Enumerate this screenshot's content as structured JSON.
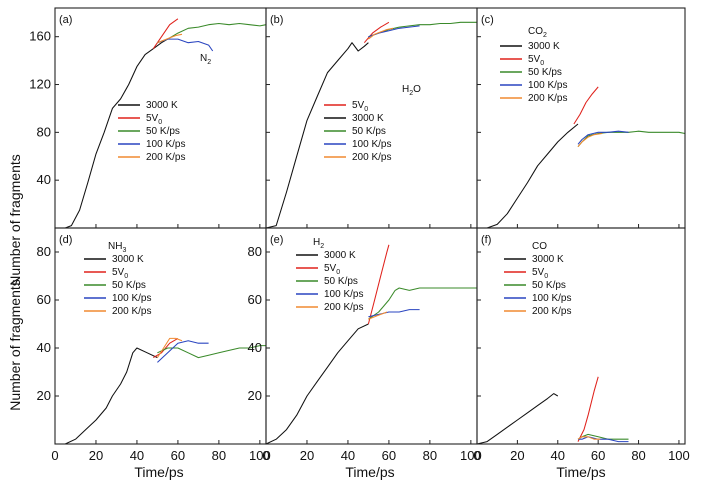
{
  "figure": {
    "ylabel": "Number of fragments",
    "xlabel": "Time/ps"
  },
  "colors": {
    "3000 K": "#111111",
    "5V0": "#e0221c",
    "50 K/ps": "#3a8a2a",
    "100 K/ps": "#2a45c0",
    "200 K/ps": "#f08a30"
  },
  "legend_entries": [
    {
      "key": "3000 K",
      "base": "3000 K",
      "sub": ""
    },
    {
      "key": "5V0",
      "base": "5V",
      "sub": "0"
    },
    {
      "key": "50 K/ps",
      "base": "50 K/ps",
      "sub": ""
    },
    {
      "key": "100 K/ps",
      "base": "100 K/ps",
      "sub": ""
    },
    {
      "key": "200 K/ps",
      "base": "200 K/ps",
      "sub": ""
    }
  ],
  "chart_data": [
    {
      "panel": "(a)",
      "species": {
        "base": "N",
        "sub": "2"
      },
      "legend_order": [
        0,
        1,
        2,
        3,
        4
      ],
      "type": "line",
      "xlim": [
        0,
        103
      ],
      "ylim": [
        0,
        184
      ],
      "xticks": [
        0,
        20,
        40,
        60,
        80,
        100
      ],
      "yticks": [
        40,
        80,
        120,
        160
      ],
      "show_x_tick_labels": false,
      "show_y_tick_labels": true,
      "series": [
        {
          "name": "3000 K",
          "x": [
            5,
            8,
            12,
            16,
            20,
            24,
            28,
            32,
            36,
            40,
            44,
            48,
            52,
            55
          ],
          "y": [
            0,
            2,
            15,
            38,
            62,
            80,
            100,
            108,
            120,
            135,
            145,
            150,
            155,
            158
          ]
        },
        {
          "name": "5V0",
          "x": [
            48,
            52,
            56,
            60
          ],
          "y": [
            150,
            160,
            170,
            175
          ]
        },
        {
          "name": "50 K/ps",
          "x": [
            50,
            55,
            60,
            65,
            70,
            75,
            80,
            85,
            90,
            95,
            100,
            103
          ],
          "y": [
            155,
            158,
            163,
            167,
            168,
            170,
            171,
            170,
            171,
            170,
            169,
            170
          ]
        },
        {
          "name": "100 K/ps",
          "x": [
            50,
            55,
            60,
            65,
            70,
            75,
            77
          ],
          "y": [
            155,
            158,
            158,
            155,
            156,
            153,
            148
          ]
        },
        {
          "name": "200 K/ps",
          "x": [
            50,
            53,
            56,
            59,
            62
          ],
          "y": [
            155,
            157,
            159,
            161,
            162
          ]
        }
      ]
    },
    {
      "panel": "(b)",
      "species": {
        "base": "H",
        "sub": "2",
        "tail": "O"
      },
      "legend_order": [
        1,
        0,
        2,
        3,
        4
      ],
      "type": "line",
      "xlim": [
        0,
        103
      ],
      "ylim": [
        0,
        184
      ],
      "xticks": [
        0,
        20,
        40,
        60,
        80,
        100
      ],
      "yticks": [
        40,
        80,
        120,
        160
      ],
      "show_x_tick_labels": false,
      "show_y_tick_labels": false,
      "series": [
        {
          "name": "3000 K",
          "x": [
            0,
            5,
            10,
            15,
            20,
            25,
            30,
            35,
            40,
            42,
            45,
            48,
            50
          ],
          "y": [
            0,
            2,
            30,
            60,
            90,
            110,
            130,
            140,
            150,
            155,
            148,
            152,
            155
          ]
        },
        {
          "name": "5V0",
          "x": [
            48,
            52,
            56,
            60
          ],
          "y": [
            155,
            163,
            168,
            172
          ]
        },
        {
          "name": "50 K/ps",
          "x": [
            50,
            55,
            60,
            65,
            70,
            75,
            80,
            85,
            90,
            95,
            100,
            103
          ],
          "y": [
            160,
            163,
            166,
            168,
            169,
            170,
            170,
            171,
            171,
            172,
            172,
            172
          ]
        },
        {
          "name": "100 K/ps",
          "x": [
            50,
            55,
            60,
            65,
            70,
            75
          ],
          "y": [
            160,
            163,
            165,
            167,
            168,
            169
          ]
        },
        {
          "name": "200 K/ps",
          "x": [
            50,
            53,
            56,
            59,
            62
          ],
          "y": [
            158,
            162,
            164,
            166,
            167
          ]
        }
      ]
    },
    {
      "panel": "(c)",
      "species": {
        "base": "CO",
        "sub": "2"
      },
      "legend_order": [
        0,
        1,
        2,
        3,
        4
      ],
      "type": "line",
      "xlim": [
        0,
        103
      ],
      "ylim": [
        0,
        184
      ],
      "xticks": [
        0,
        20,
        40,
        60,
        80,
        100
      ],
      "yticks": [
        40,
        80,
        120,
        160
      ],
      "show_x_tick_labels": false,
      "show_y_tick_labels": false,
      "series": [
        {
          "name": "3000 K",
          "x": [
            5,
            10,
            15,
            20,
            25,
            30,
            35,
            40,
            45,
            50
          ],
          "y": [
            0,
            3,
            12,
            25,
            38,
            52,
            62,
            72,
            80,
            87
          ]
        },
        {
          "name": "5V0",
          "x": [
            48,
            51,
            54,
            57,
            60
          ],
          "y": [
            87,
            95,
            105,
            112,
            118
          ]
        },
        {
          "name": "50 K/ps",
          "x": [
            50,
            52,
            55,
            60,
            65,
            70,
            75,
            80,
            85,
            90,
            95,
            100,
            103
          ],
          "y": [
            68,
            72,
            77,
            79,
            80,
            80,
            80,
            81,
            80,
            80,
            80,
            80,
            79
          ]
        },
        {
          "name": "100 K/ps",
          "x": [
            50,
            52,
            55,
            60,
            65,
            70,
            75
          ],
          "y": [
            70,
            74,
            78,
            80,
            80,
            81,
            80
          ]
        },
        {
          "name": "200 K/ps",
          "x": [
            50,
            52,
            55,
            58,
            62
          ],
          "y": [
            68,
            72,
            76,
            78,
            79
          ]
        }
      ]
    },
    {
      "panel": "(d)",
      "species": {
        "base": "NH",
        "sub": "3"
      },
      "legend_order": [
        0,
        1,
        2,
        3,
        4
      ],
      "type": "line",
      "xlim": [
        0,
        103
      ],
      "ylim": [
        0,
        90
      ],
      "xticks": [
        0,
        20,
        40,
        60,
        80,
        100
      ],
      "yticks": [
        20,
        40,
        60,
        80
      ],
      "show_x_tick_labels": true,
      "show_y_tick_labels": true,
      "series": [
        {
          "name": "3000 K",
          "x": [
            5,
            10,
            15,
            20,
            25,
            28,
            32,
            35,
            38,
            40,
            45,
            50
          ],
          "y": [
            0,
            2,
            6,
            10,
            15,
            20,
            25,
            30,
            38,
            40,
            38,
            36
          ]
        },
        {
          "name": "5V0",
          "x": [
            48,
            52,
            56,
            60
          ],
          "y": [
            36,
            38,
            42,
            44
          ]
        },
        {
          "name": "50 K/ps",
          "x": [
            50,
            55,
            60,
            65,
            70,
            75,
            80,
            85,
            90,
            95,
            100,
            103
          ],
          "y": [
            38,
            40,
            40,
            38,
            36,
            37,
            38,
            39,
            40,
            40,
            41,
            41
          ]
        },
        {
          "name": "100 K/ps",
          "x": [
            50,
            55,
            60,
            65,
            70,
            75
          ],
          "y": [
            34,
            38,
            42,
            43,
            42,
            42
          ]
        },
        {
          "name": "200 K/ps",
          "x": [
            50,
            53,
            56,
            59,
            62
          ],
          "y": [
            36,
            40,
            44,
            44,
            43
          ]
        }
      ]
    },
    {
      "panel": "(e)",
      "species": {
        "base": "H",
        "sub": "2"
      },
      "legend_order": [
        0,
        1,
        2,
        3,
        4
      ],
      "type": "line",
      "xlim": [
        0,
        103
      ],
      "ylim": [
        0,
        90
      ],
      "xticks": [
        0,
        20,
        40,
        60,
        80,
        100
      ],
      "yticks": [
        20,
        40,
        60,
        80
      ],
      "show_x_tick_labels": true,
      "show_y_tick_labels": true,
      "series": [
        {
          "name": "3000 K",
          "x": [
            0,
            5,
            10,
            15,
            20,
            25,
            30,
            35,
            40,
            45,
            50
          ],
          "y": [
            0,
            2,
            6,
            12,
            20,
            26,
            32,
            38,
            43,
            48,
            50
          ]
        },
        {
          "name": "5V0",
          "x": [
            50,
            53,
            56,
            59,
            60
          ],
          "y": [
            50,
            60,
            70,
            80,
            83
          ]
        },
        {
          "name": "50 K/ps",
          "x": [
            50,
            55,
            60,
            63,
            65,
            70,
            75,
            80,
            85,
            90,
            95,
            100,
            103
          ],
          "y": [
            52,
            55,
            60,
            64,
            65,
            64,
            65,
            65,
            65,
            65,
            65,
            65,
            65
          ]
        },
        {
          "name": "100 K/ps",
          "x": [
            50,
            55,
            60,
            65,
            70,
            75
          ],
          "y": [
            53,
            54,
            55,
            55,
            56,
            56
          ]
        },
        {
          "name": "200 K/ps",
          "x": [
            50,
            53,
            56,
            59
          ],
          "y": [
            52,
            53,
            54,
            55
          ]
        }
      ]
    },
    {
      "panel": "(f)",
      "species": {
        "base": "CO",
        "sub": ""
      },
      "legend_order": [
        0,
        1,
        2,
        3,
        4
      ],
      "type": "line",
      "xlim": [
        0,
        103
      ],
      "ylim": [
        0,
        90
      ],
      "xticks": [
        0,
        20,
        40,
        60,
        80,
        100
      ],
      "yticks": [
        20,
        40,
        60,
        80
      ],
      "show_x_tick_labels": true,
      "show_y_tick_labels": false,
      "series": [
        {
          "name": "3000 K",
          "x": [
            0,
            5,
            10,
            15,
            20,
            25,
            30,
            35,
            38,
            40
          ],
          "y": [
            0,
            1,
            4,
            7,
            10,
            13,
            16,
            19,
            21,
            20
          ]
        },
        {
          "name": "5V0",
          "x": [
            50,
            53,
            55,
            58,
            60
          ],
          "y": [
            1,
            6,
            12,
            22,
            28
          ]
        },
        {
          "name": "50 K/ps",
          "x": [
            50,
            52,
            55,
            60,
            65,
            70,
            75
          ],
          "y": [
            2,
            3,
            4,
            3,
            2,
            2,
            2
          ]
        },
        {
          "name": "100 K/ps",
          "x": [
            50,
            52,
            55,
            60,
            65,
            70,
            75
          ],
          "y": [
            2,
            2,
            3,
            2,
            2,
            1,
            1
          ]
        },
        {
          "name": "200 K/ps",
          "x": [
            50,
            52,
            55,
            58,
            61
          ],
          "y": [
            2,
            3,
            3,
            2,
            2
          ]
        }
      ]
    }
  ]
}
